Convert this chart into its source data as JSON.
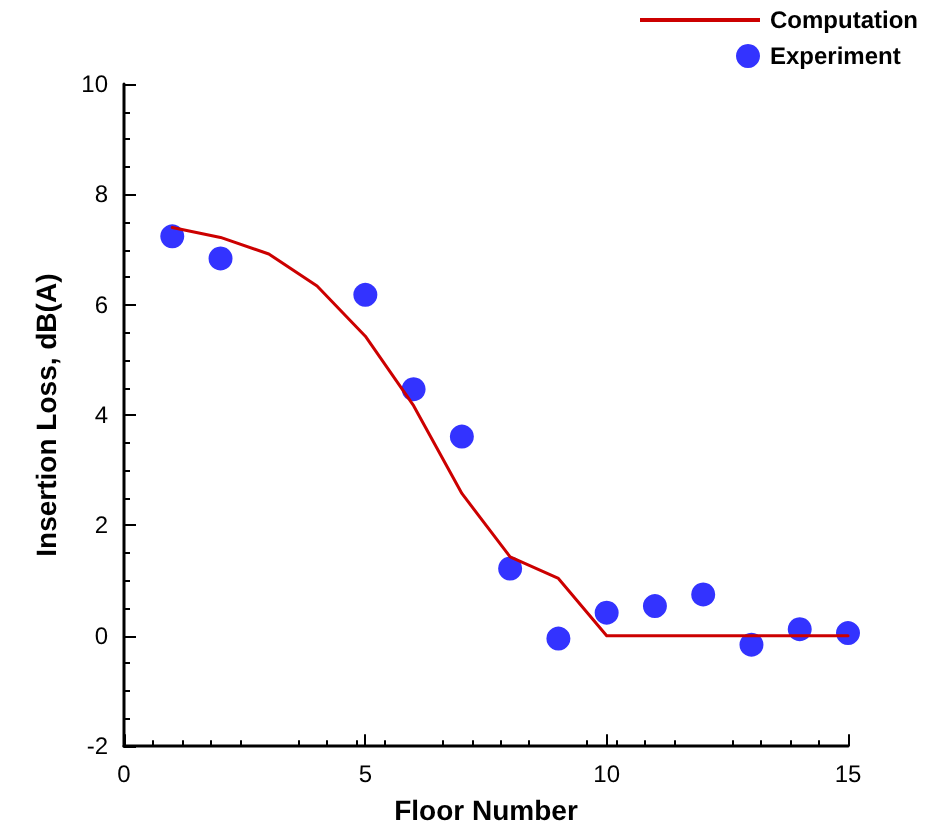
{
  "chart_data": {
    "type": "line",
    "xlabel": "Floor Number",
    "ylabel": "Insertion Loss, dB(A)",
    "xlim": [
      0,
      15
    ],
    "xticks": [
      0,
      5,
      10,
      15
    ],
    "ylim": [
      -2,
      10
    ],
    "yticks": [
      -2,
      0,
      2,
      4,
      6,
      8,
      10
    ],
    "grid": false,
    "legend": "top right",
    "series": [
      {
        "name": "Computation",
        "color": "#cc0000",
        "marker": "none",
        "x": [
          1,
          2,
          3,
          4,
          5,
          6,
          7,
          8,
          9,
          10,
          11,
          12,
          13,
          14,
          15
        ],
        "values": [
          7.4,
          7.22,
          6.92,
          6.34,
          5.43,
          4.17,
          2.58,
          1.43,
          1.04,
          0,
          0,
          0,
          0,
          0,
          0
        ]
      },
      {
        "name": "Experiment",
        "type": "scatter",
        "color": "#3333ff",
        "marker": "circle",
        "x": [
          1,
          2,
          5,
          6,
          7,
          8,
          9,
          10,
          11,
          12,
          13,
          14,
          15
        ],
        "values": [
          7.24,
          6.84,
          6.18,
          4.47,
          3.61,
          1.22,
          -0.05,
          0.42,
          0.54,
          0.75,
          -0.16,
          0.12,
          0.05
        ]
      }
    ]
  }
}
